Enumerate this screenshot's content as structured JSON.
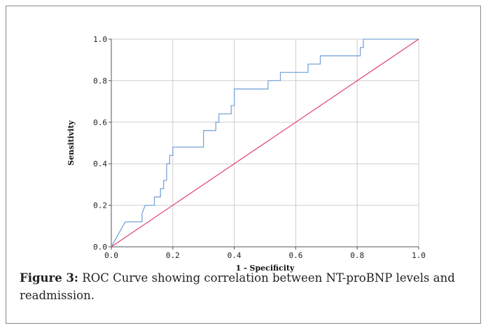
{
  "caption": {
    "label": "Figure 3:",
    "text": " ROC Curve showing correlation between NT-proBNP levels and readmission."
  },
  "chart_data": {
    "type": "line",
    "xlabel": "1 - Specificity",
    "ylabel": "Sensitivity",
    "xlim": [
      0,
      1
    ],
    "ylim": [
      0,
      1
    ],
    "grid": true,
    "x_ticks": [
      "0.0",
      "0.2",
      "0.4",
      "0.6",
      "0.8",
      "1.0"
    ],
    "y_ticks": [
      "0.0",
      "0.2",
      "0.4",
      "0.6",
      "0.8",
      "1.0"
    ],
    "series": [
      {
        "color": "#7aa6d8",
        "x": [
          0,
          0.045,
          0.1,
          0.1,
          0.11,
          0.14,
          0.14,
          0.16,
          0.16,
          0.17,
          0.17,
          0.18,
          0.18,
          0.19,
          0.19,
          0.2,
          0.2,
          0.3,
          0.3,
          0.34,
          0.34,
          0.35,
          0.35,
          0.39,
          0.39,
          0.4,
          0.4,
          0.51,
          0.51,
          0.55,
          0.55,
          0.56,
          0.56,
          0.64,
          0.64,
          0.68,
          0.68,
          0.81,
          0.81,
          0.82,
          0.82,
          1.0
        ],
        "y": [
          0,
          0.12,
          0.12,
          0.16,
          0.2,
          0.2,
          0.24,
          0.24,
          0.28,
          0.28,
          0.32,
          0.32,
          0.4,
          0.4,
          0.44,
          0.44,
          0.48,
          0.48,
          0.56,
          0.56,
          0.6,
          0.6,
          0.64,
          0.64,
          0.68,
          0.68,
          0.76,
          0.76,
          0.8,
          0.8,
          0.84,
          0.84,
          0.84,
          0.84,
          0.88,
          0.88,
          0.92,
          0.92,
          0.96,
          0.96,
          1.0,
          1.0
        ]
      },
      {
        "color": "#e0426a",
        "x": [
          0,
          1
        ],
        "y": [
          0,
          1
        ]
      }
    ]
  }
}
